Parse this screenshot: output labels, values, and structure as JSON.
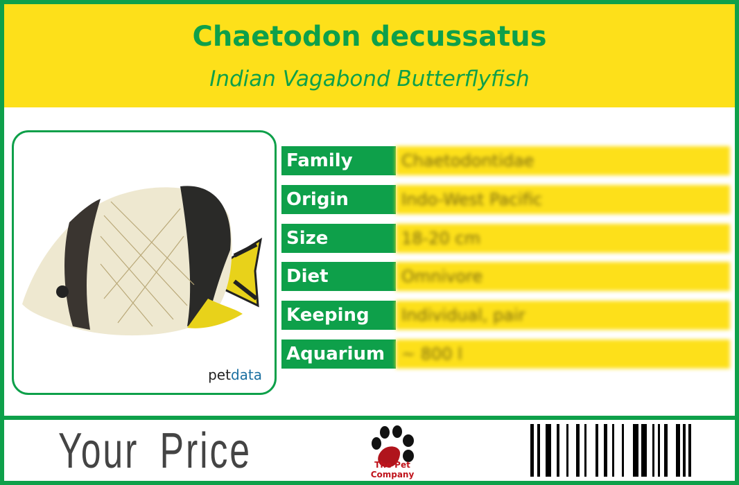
{
  "header": {
    "title": "Chaetodon decussatus",
    "subtitle": "Indian Vagabond Butterflyfish"
  },
  "photo": {
    "brand_prefix": "pet",
    "brand_suffix": "data"
  },
  "facts": [
    {
      "label": "Family",
      "value": "Chaetodontidae"
    },
    {
      "label": "Origin",
      "value": "Indo-West Pacific"
    },
    {
      "label": "Size",
      "value": "18-20 cm"
    },
    {
      "label": "Diet",
      "value": "Omnivore"
    },
    {
      "label": "Keeping",
      "value": "Individual, pair"
    },
    {
      "label": "Aquarium",
      "value": "~ 800 l"
    }
  ],
  "footer": {
    "price_label": "Your Price",
    "company": "The Pet Company"
  },
  "colors": {
    "green": "#0ea04a",
    "yellow": "#fde01a",
    "logo_red": "#c0141c"
  }
}
